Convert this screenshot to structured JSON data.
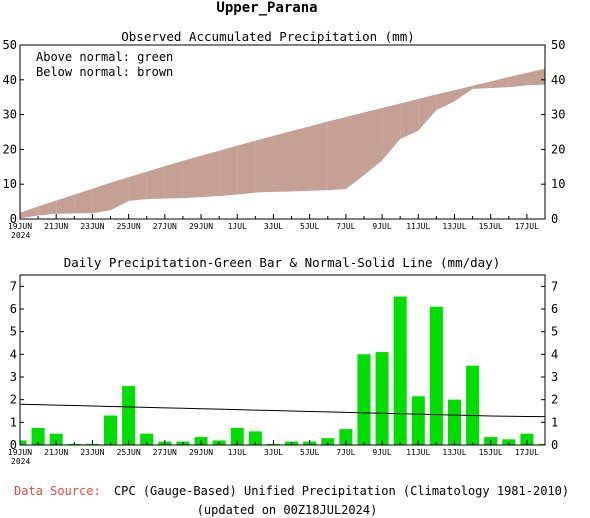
{
  "title": "Upper_Parana",
  "footer": {
    "source_label": "Data Source:",
    "source_text": "CPC (Gauge-Based) Unified Precipitation (Climatology 1981-2010)",
    "updated": "(updated on 00Z18JUL2024)"
  },
  "colors": {
    "above": "#00dd00",
    "below": "#c4a095",
    "bar": "#00dd00",
    "line": "#000000",
    "source_label": "#e8483b"
  },
  "chart_data": [
    {
      "type": "area",
      "title": "Observed Accumulated Precipitation (mm)",
      "legend": [
        "Above normal: green",
        "Below normal: brown"
      ],
      "legend_position": "top-left",
      "ylim": [
        0,
        50
      ],
      "yticks": [
        0,
        10,
        20,
        30,
        40,
        50
      ],
      "xtick_labels": [
        "19JUN",
        "21JUN",
        "23JUN",
        "25JUN",
        "27JUN",
        "29JUN",
        "1JUL",
        "3JUL",
        "5JUL",
        "7JUL",
        "9JUL",
        "11JUL",
        "13JUL",
        "15JUL",
        "17JUL"
      ],
      "year_label": "2024",
      "x": [
        "19JUN",
        "20JUN",
        "21JUN",
        "22JUN",
        "23JUN",
        "24JUN",
        "25JUN",
        "26JUN",
        "27JUN",
        "28JUN",
        "29JUN",
        "30JUN",
        "1JUL",
        "2JUL",
        "3JUL",
        "4JUL",
        "5JUL",
        "6JUL",
        "7JUL",
        "8JUL",
        "9JUL",
        "10JUL",
        "11JUL",
        "12JUL",
        "13JUL",
        "14JUL",
        "15JUL",
        "16JUL",
        "17JUL",
        "18JUL"
      ],
      "series": [
        {
          "name": "Observed",
          "values": [
            0.2,
            1.0,
            1.5,
            1.6,
            1.7,
            2.5,
            5.2,
            5.7,
            5.9,
            6.0,
            6.3,
            6.6,
            7.0,
            7.6,
            7.8,
            7.9,
            8.1,
            8.3,
            8.6,
            12.6,
            16.8,
            23.0,
            25.4,
            31.3,
            33.8,
            37.4,
            37.6,
            37.9,
            38.4,
            38.6
          ]
        },
        {
          "name": "Normal",
          "values": [
            1.8,
            3.6,
            5.3,
            7.0,
            8.7,
            10.4,
            12.0,
            13.6,
            15.2,
            16.7,
            18.2,
            19.6,
            21.1,
            22.5,
            23.9,
            25.3,
            26.6,
            28.0,
            29.3,
            30.6,
            31.9,
            33.2,
            34.5,
            35.8,
            37.0,
            38.3,
            39.5,
            40.8,
            42.0,
            43.2
          ]
        }
      ]
    },
    {
      "type": "bar",
      "title": "Daily Precipitation-Green Bar & Normal-Solid Line (mm/day)",
      "ylim": [
        0,
        7.5
      ],
      "yticks": [
        0,
        1,
        2,
        3,
        4,
        5,
        6,
        7
      ],
      "xtick_labels": [
        "19JUN",
        "21JUN",
        "23JUN",
        "25JUN",
        "27JUN",
        "29JUN",
        "1JUL",
        "3JUL",
        "5JUL",
        "7JUL",
        "9JUL",
        "11JUL",
        "13JUL",
        "15JUL",
        "17JUL"
      ],
      "year_label": "2024",
      "x": [
        "19JUN",
        "20JUN",
        "21JUN",
        "22JUN",
        "23JUN",
        "24JUN",
        "25JUN",
        "26JUN",
        "27JUN",
        "28JUN",
        "29JUN",
        "30JUN",
        "1JUL",
        "2JUL",
        "3JUL",
        "4JUL",
        "5JUL",
        "6JUL",
        "7JUL",
        "8JUL",
        "9JUL",
        "10JUL",
        "11JUL",
        "12JUL",
        "13JUL",
        "14JUL",
        "15JUL",
        "16JUL",
        "17JUL",
        "18JUL"
      ],
      "series": [
        {
          "name": "Daily Precipitation",
          "values": [
            0.2,
            0.75,
            0.5,
            0.05,
            0.05,
            1.3,
            2.6,
            0.5,
            0.15,
            0.15,
            0.35,
            0.2,
            0.75,
            0.6,
            0.05,
            0.15,
            0.15,
            0.3,
            0.7,
            4.0,
            4.1,
            6.55,
            2.15,
            6.1,
            2.0,
            3.5,
            0.35,
            0.25,
            0.5,
            0.05
          ]
        },
        {
          "name": "Normal",
          "values": [
            1.8,
            1.78,
            1.76,
            1.74,
            1.72,
            1.7,
            1.68,
            1.66,
            1.64,
            1.62,
            1.6,
            1.58,
            1.56,
            1.54,
            1.52,
            1.5,
            1.48,
            1.46,
            1.44,
            1.42,
            1.4,
            1.38,
            1.36,
            1.34,
            1.32,
            1.3,
            1.28,
            1.27,
            1.26,
            1.25
          ]
        }
      ]
    }
  ]
}
